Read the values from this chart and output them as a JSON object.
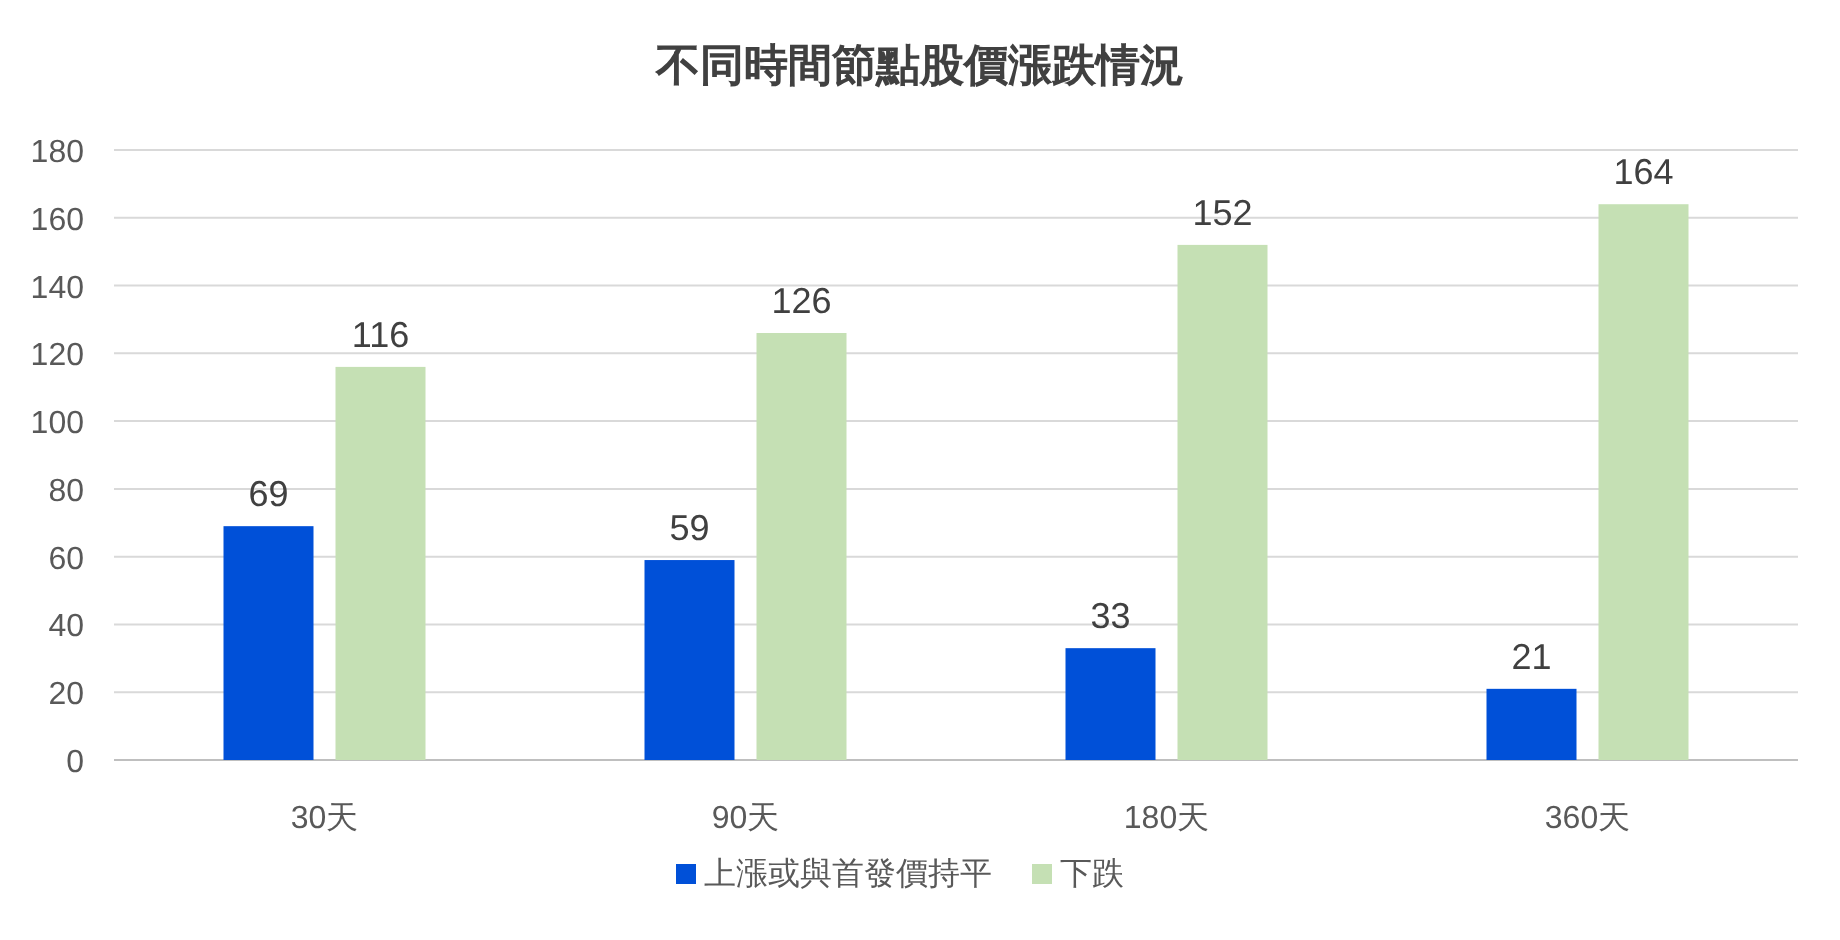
{
  "chart_data": {
    "type": "bar",
    "title": "不同時間節點股價漲跌情況",
    "categories": [
      "30天",
      "90天",
      "180天",
      "360天"
    ],
    "series": [
      {
        "name": "上漲或與首發價持平",
        "color": "#0050d8",
        "values": [
          69,
          59,
          33,
          21
        ]
      },
      {
        "name": "下跌",
        "color": "#c5e0b4",
        "values": [
          116,
          126,
          152,
          164
        ]
      }
    ],
    "ylim": [
      0,
      180
    ],
    "yticks": [
      0,
      20,
      40,
      60,
      80,
      100,
      120,
      140,
      160,
      180
    ],
    "grid": "y",
    "legend": "bottom",
    "data_labels": true
  }
}
